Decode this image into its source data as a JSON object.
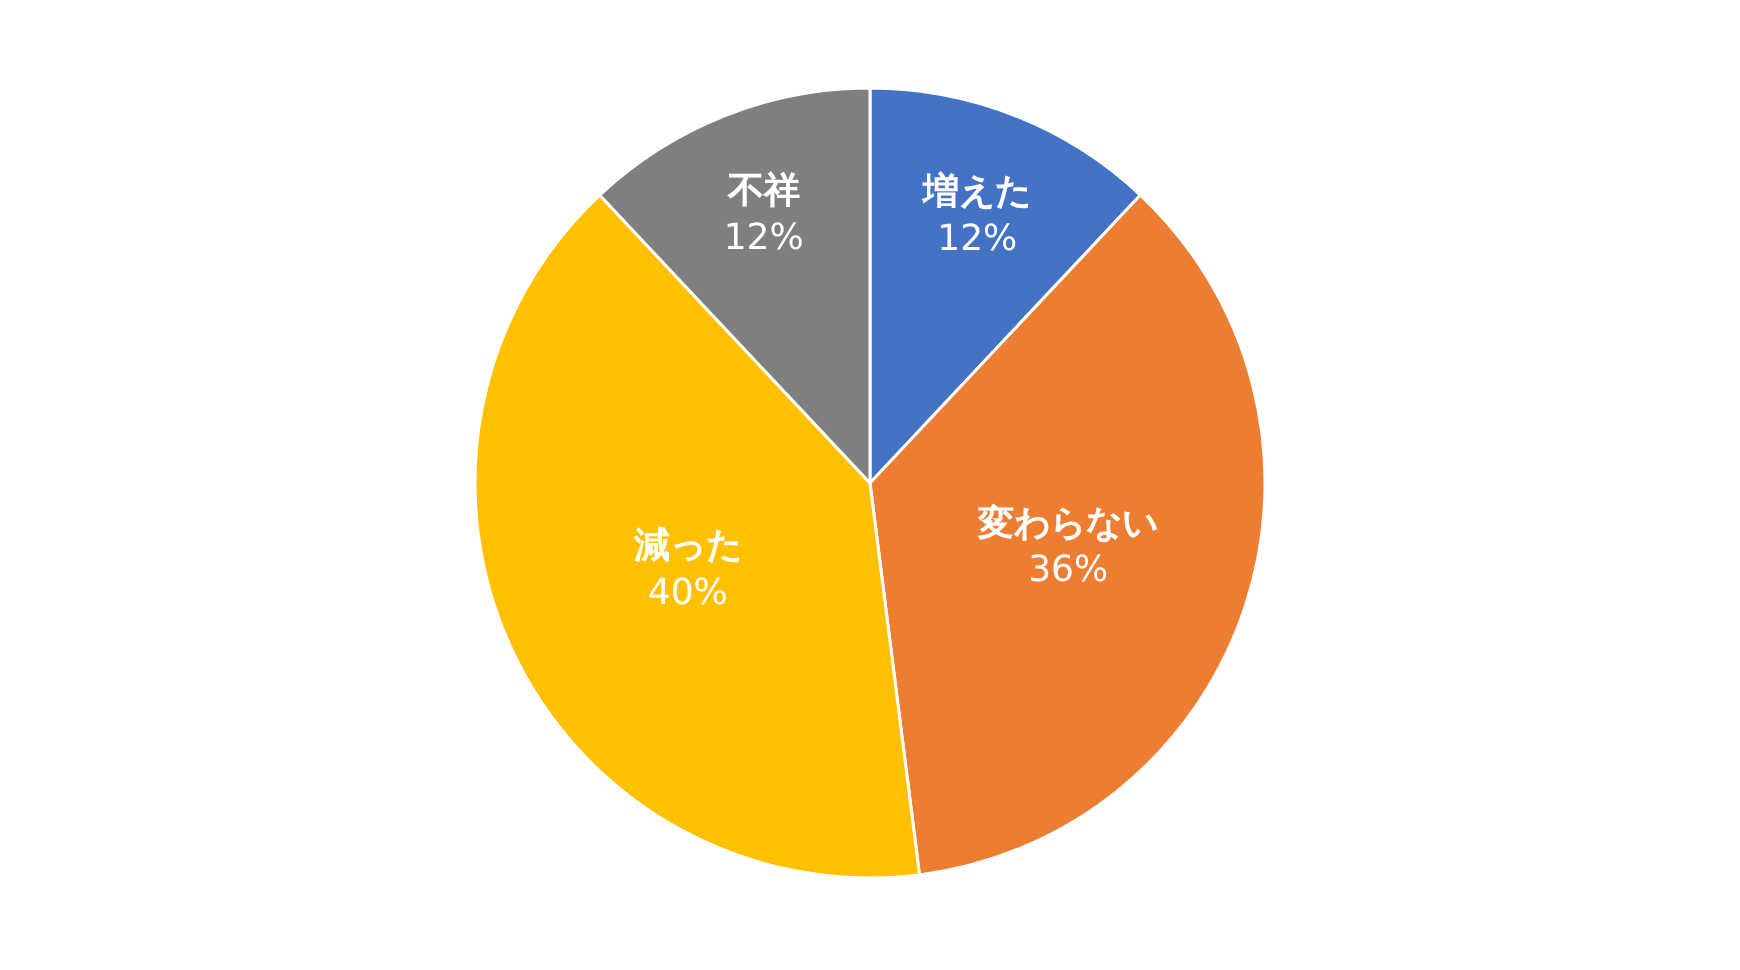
{
  "chart_data": {
    "type": "pie",
    "categories": [
      "増えた",
      "変わらない",
      "減った",
      "不祥"
    ],
    "values": [
      12,
      36,
      40,
      12
    ],
    "colors": [
      "#4472c4",
      "#ed7d31",
      "#ffc000",
      "#7f7f7f"
    ],
    "value_labels": [
      "12%",
      "36%",
      "40%",
      "12%"
    ],
    "legend": false
  }
}
